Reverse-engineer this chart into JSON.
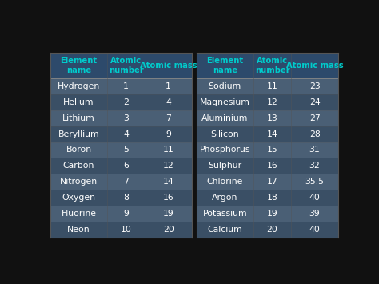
{
  "background_color": "#111111",
  "header_bg": "#2d4a6b",
  "row_colors": [
    "#4a5f75",
    "#3a4f65"
  ],
  "header_color": "#00cccc",
  "data_color": "#ffffff",
  "left_elements": [
    "Hydrogen",
    "Helium",
    "Lithium",
    "Beryllium",
    "Boron",
    "Carbon",
    "Nitrogen",
    "Oxygen",
    "Fluorine",
    "Neon"
  ],
  "left_numbers": [
    "1",
    "2",
    "3",
    "4",
    "5",
    "6",
    "7",
    "8",
    "9",
    "10"
  ],
  "left_masses": [
    "1",
    "4",
    "7",
    "9",
    "11",
    "12",
    "14",
    "16",
    "19",
    "20"
  ],
  "right_elements": [
    "Sodium",
    "Magnesium",
    "Aluminium",
    "Silicon",
    "Phosphorus",
    "Sulphur",
    "Chlorine",
    "Argon",
    "Potassium",
    "Calcium"
  ],
  "right_numbers": [
    "11",
    "12",
    "13",
    "14",
    "15",
    "16",
    "17",
    "18",
    "19",
    "20"
  ],
  "right_masses": [
    "23",
    "24",
    "27",
    "28",
    "31",
    "32",
    "35.5",
    "40",
    "39",
    "40"
  ],
  "header_line_color": "#888888",
  "divider_color": "#555555"
}
